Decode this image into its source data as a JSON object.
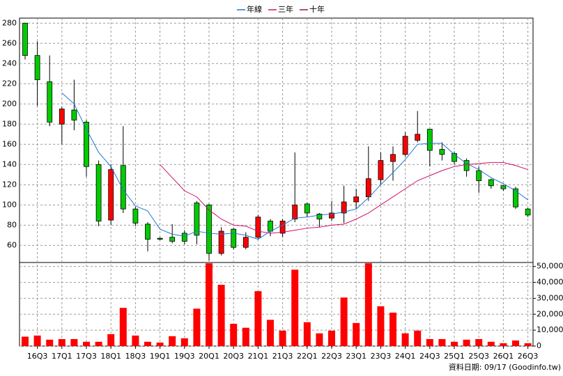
{
  "chart_data": {
    "type": "candlestick",
    "categories": [
      null,
      "16Q3",
      null,
      "17Q1",
      null,
      "17Q3",
      null,
      "18Q1",
      null,
      "18Q3",
      null,
      "19Q1",
      null,
      "19Q3",
      null,
      "20Q1",
      null,
      "20Q3",
      null,
      "21Q1",
      null,
      "21Q3",
      null,
      "22Q1",
      null,
      "22Q3",
      null,
      "23Q1",
      null,
      "23Q3",
      null,
      "24Q1",
      null,
      "24Q3",
      null,
      "25Q1",
      null,
      "25Q3",
      null,
      "26Q1",
      null,
      "26Q3"
    ],
    "open": [
      280,
      248,
      222,
      180,
      194,
      182,
      140,
      85,
      139,
      96,
      81,
      67,
      68,
      72,
      102,
      100,
      52,
      76,
      58,
      68,
      84,
      72,
      86,
      101,
      91,
      87,
      92,
      103,
      108,
      125,
      143,
      150,
      164,
      175,
      155,
      151,
      144,
      134,
      125,
      119,
      116,
      96
    ],
    "high": [
      280,
      262,
      248,
      197,
      224,
      184,
      144,
      140,
      178,
      98,
      83,
      68,
      81,
      75,
      104,
      101,
      78,
      77,
      73,
      90,
      86,
      86,
      152,
      102,
      92,
      104,
      119,
      116,
      158,
      152,
      158,
      172,
      193,
      175,
      162,
      153,
      146,
      138,
      126,
      120,
      118,
      97
    ],
    "low": [
      244,
      198,
      178,
      160,
      174,
      128,
      79,
      80,
      92,
      79,
      54,
      65,
      62,
      61,
      61,
      45,
      50,
      56,
      56,
      66,
      69,
      68,
      83,
      88,
      78,
      84,
      82,
      96,
      104,
      120,
      124,
      148,
      162,
      138,
      144,
      140,
      128,
      112,
      116,
      114,
      96,
      88
    ],
    "close": [
      248,
      224,
      182,
      195,
      184,
      138,
      84,
      135,
      96,
      82,
      66,
      66,
      64,
      64,
      70,
      52,
      74,
      58,
      68,
      88,
      74,
      84,
      100,
      92,
      86,
      92,
      103,
      108,
      126,
      144,
      150,
      168,
      170,
      154,
      150,
      143,
      134,
      124,
      119,
      116,
      98,
      90
    ],
    "up_color": "#ff0000",
    "down_color": "#00cc00",
    "series": [
      {
        "name": "年線",
        "color": "#1f77d0",
        "values": [
          null,
          null,
          null,
          211,
          200,
          175,
          152,
          138,
          115,
          99,
          94,
          76,
          71,
          69,
          74,
          72,
          71,
          72,
          70,
          66,
          74,
          80,
          87,
          88,
          90,
          91,
          93,
          96,
          107,
          120,
          132,
          145,
          160,
          161,
          161,
          150,
          141,
          135,
          127,
          121,
          114,
          105
        ]
      },
      {
        "name": "三年",
        "color": "#d0106a",
        "values": [
          null,
          null,
          null,
          null,
          null,
          null,
          null,
          null,
          null,
          null,
          null,
          140,
          127,
          114,
          108,
          95,
          86,
          80,
          79,
          74,
          72,
          73,
          75,
          77,
          78,
          80,
          81,
          86,
          92,
          100,
          108,
          116,
          124,
          129,
          134,
          138,
          140,
          141,
          142,
          142,
          139,
          135
        ]
      },
      {
        "name": "十年",
        "color": "#a0106a",
        "values": [
          null,
          null,
          null,
          null,
          null,
          null,
          null,
          null,
          null,
          null,
          null,
          null,
          null,
          null,
          null,
          null,
          null,
          null,
          null,
          null,
          null,
          null,
          null,
          null,
          null,
          null,
          null,
          null,
          null,
          null,
          null,
          null,
          null,
          null,
          null,
          null,
          null,
          null,
          null,
          null,
          null,
          null
        ]
      }
    ],
    "volume": {
      "color": "#ff0000",
      "axis": "y2",
      "values": [
        5900,
        6600,
        4000,
        4400,
        4400,
        2700,
        2700,
        7500,
        24000,
        6600,
        2700,
        2200,
        6200,
        4900,
        23500,
        52000,
        38500,
        14000,
        11500,
        34500,
        16500,
        9700,
        48000,
        15000,
        8000,
        9700,
        30500,
        14500,
        52000,
        25000,
        21000,
        8000,
        9700,
        4400,
        4400,
        2700,
        4000,
        4400,
        2700,
        1800,
        3500,
        1800
      ]
    },
    "ylim": [
      43,
      285
    ],
    "yticks": [
      60,
      80,
      100,
      120,
      140,
      160,
      180,
      200,
      220,
      240,
      260,
      280
    ],
    "y2lim": [
      0,
      52500
    ],
    "y2ticks": [
      0,
      {
        "value": 10000,
        "label": "10,000"
      },
      {
        "value": 20000,
        "label": "20,000"
      },
      {
        "value": 30000,
        "label": "30,000"
      },
      {
        "value": 40000,
        "label": "40,000"
      },
      {
        "value": 50000,
        "label": "50,000"
      }
    ],
    "grid": true,
    "note": "資料日期: 09/17 (Goodinfo.tw)"
  }
}
